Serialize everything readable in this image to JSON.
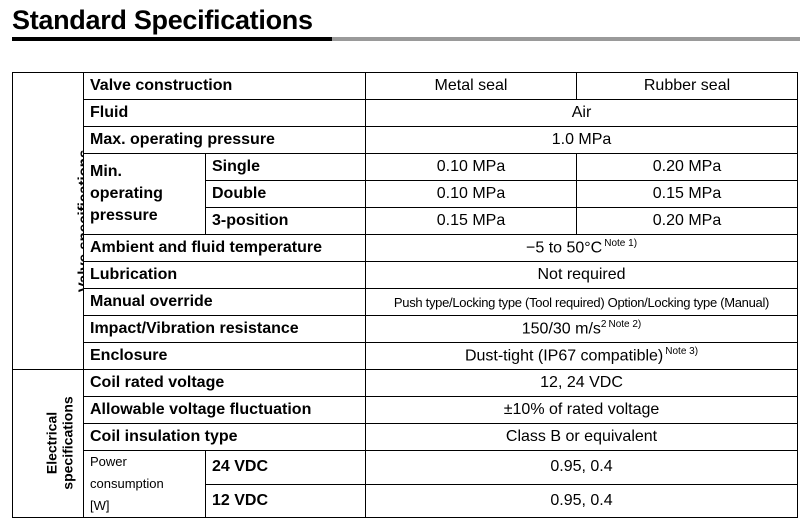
{
  "title": "Standard Specifications",
  "valve_group": "Valve specifications",
  "electrical_group": [
    "Electrical",
    "specifications"
  ],
  "header": {
    "label": "Valve construction",
    "col1": "Metal seal",
    "col2": "Rubber seal"
  },
  "fluid": {
    "label": "Fluid",
    "value": "Air"
  },
  "max_pressure": {
    "label": "Max. operating pressure",
    "value": "1.0 MPa"
  },
  "min_pressure": {
    "label_lines": [
      "Min.",
      "operating",
      "pressure"
    ],
    "rows": [
      {
        "type": "Single",
        "metal": "0.10 MPa",
        "rubber": "0.20 MPa"
      },
      {
        "type": "Double",
        "metal": "0.10 MPa",
        "rubber": "0.15 MPa"
      },
      {
        "type": "3-position",
        "metal": "0.15 MPa",
        "rubber": "0.20 MPa"
      }
    ]
  },
  "temperature": {
    "label": "Ambient and fluid temperature",
    "value": "−5 to 50°C",
    "note": "Note 1)"
  },
  "lubrication": {
    "label": "Lubrication",
    "value": "Not required"
  },
  "manual_override": {
    "label": "Manual override",
    "value": "Push type/Locking type (Tool required) Option/Locking type (Manual)"
  },
  "impact": {
    "label": "Impact/Vibration resistance",
    "value": "150/30 m/s",
    "sup": "2",
    "note": "Note 2)"
  },
  "enclosure": {
    "label": "Enclosure",
    "value": "Dust-tight (IP67 compatible)",
    "note": "Note 3)"
  },
  "coil_voltage": {
    "label": "Coil rated voltage",
    "value": "12, 24 VDC"
  },
  "voltage_fluctuation": {
    "label": "Allowable voltage fluctuation",
    "value": "±10% of rated voltage"
  },
  "coil_insulation": {
    "label": "Coil insulation type",
    "value": "Class B or equivalent"
  },
  "power": {
    "label_lines": [
      "Power consumption",
      "[W]"
    ],
    "rows": [
      {
        "voltage": "24 VDC",
        "value": "0.95, 0.4"
      },
      {
        "voltage": "12 VDC",
        "value": "0.95, 0.4"
      }
    ]
  }
}
